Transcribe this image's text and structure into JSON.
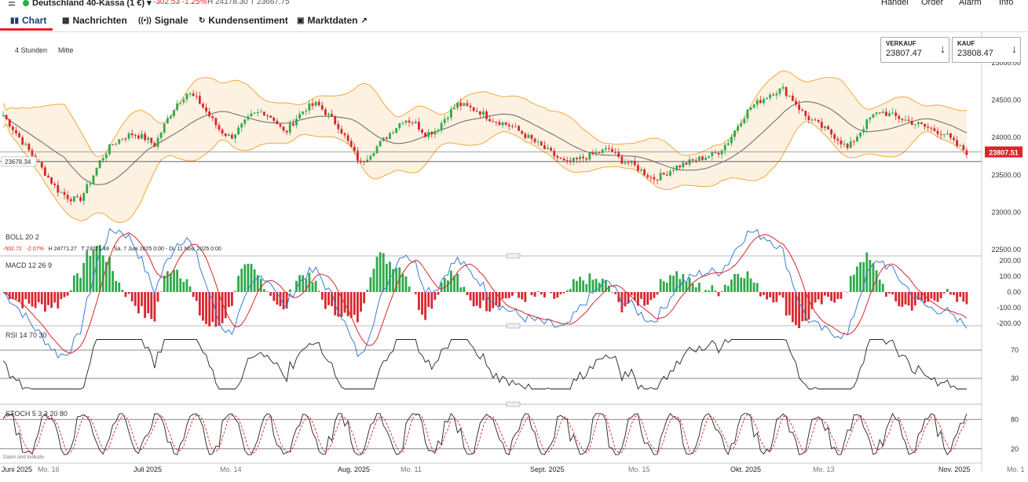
{
  "header": {
    "instrument": "Deutschland 40-Kassa (1 €)",
    "change": "-302.53  -1.25%",
    "high_low": "H 24178.30  T 23667.75",
    "nav": [
      "Handel",
      "Order",
      "Alarm",
      "Info"
    ]
  },
  "tabs": [
    {
      "label": "Chart",
      "icon": "bar-chart-icon"
    },
    {
      "label": "Nachrichten",
      "icon": "newspaper-icon"
    },
    {
      "label": "Signale",
      "icon": "signal-icon"
    },
    {
      "label": "Kundensentiment",
      "icon": "refresh-icon"
    },
    {
      "label": "Marktdaten",
      "icon": "document-icon"
    }
  ],
  "toolbar": {
    "timeframe": "4 Stunden",
    "price_type": "Mitte"
  },
  "quotes": {
    "sell": {
      "label": "VERKAUF",
      "value": "23807.47"
    },
    "buy": {
      "label": "KAUF",
      "value": "23808.47"
    }
  },
  "price_panel": {
    "y_ticks": [
      "25000.00",
      "24500.00",
      "24000.00",
      "23500.00",
      "23000.00",
      "22500.00"
    ],
    "current_price": "23807.51",
    "crosshair_price": "23678.34",
    "boll_label": "BOLL  20  2",
    "stats": {
      "change": "-502.72",
      "change_pct": "-2.07%",
      "high": "H 24771.27",
      "low": "T 23021.48",
      "range": "Sa. 7 Juni 2025 0:00 - Di. 11 Nov. 2025 0:00"
    }
  },
  "macd_panel": {
    "label": "MACD  12  26  9",
    "y_ticks": [
      "200.00",
      "100.00",
      "0.00",
      "-100.00",
      "-200.00"
    ]
  },
  "rsi_panel": {
    "label": "RSI  14  70  30",
    "y_ticks": [
      "70",
      "30"
    ]
  },
  "stoch_panel": {
    "label": "STOCH  5  3  3  20  80",
    "y_ticks": [
      "80",
      "20"
    ],
    "note": "Daten sind Indikativ"
  },
  "x_axis": [
    "Juni 2025",
    "Mo. 16",
    "Juli 2025",
    "Mo. 14",
    "Aug. 2025",
    "Mo. 11",
    "Sept. 2025",
    "Mo. 15",
    "Okt. 2025",
    "Mo. 13",
    "Nov. 2025",
    "Mo. 1"
  ],
  "colors": {
    "up": "#2eaa4a",
    "down": "#d9262c",
    "band": "#f2a93b",
    "band_fill": "#fdf1e2",
    "macd_line": "#3b7bd4",
    "signal_line": "#d9262c"
  },
  "chart_data": {
    "type": "candlestick",
    "title": "",
    "series_close_approx": [
      24300,
      24100,
      23900,
      23700,
      23500,
      23300,
      23200,
      23150,
      23400,
      23700,
      23900,
      24000,
      24050,
      24000,
      23900,
      24200,
      24450,
      24600,
      24500,
      24300,
      24100,
      24000,
      24150,
      24300,
      24350,
      24250,
      24050,
      24250,
      24400,
      24450,
      24300,
      24150,
      23900,
      23650,
      23800,
      23950,
      24100,
      24250,
      24200,
      24050,
      24100,
      24300,
      24450,
      24400,
      24350,
      24250,
      24200,
      24150,
      24050,
      23950,
      23850,
      23750,
      23650,
      23700,
      23750,
      23800,
      23850,
      23700,
      23650,
      23550,
      23450,
      23500,
      23600,
      23650,
      23700,
      23750,
      23800,
      23950,
      24200,
      24400,
      24500,
      24600,
      24650,
      24500,
      24300,
      24200,
      24100,
      24000,
      23850,
      24050,
      24250,
      24350,
      24300,
      24250,
      24200,
      24150,
      24100,
      24050,
      23900,
      23808
    ],
    "ylim": [
      22500,
      25000
    ]
  }
}
